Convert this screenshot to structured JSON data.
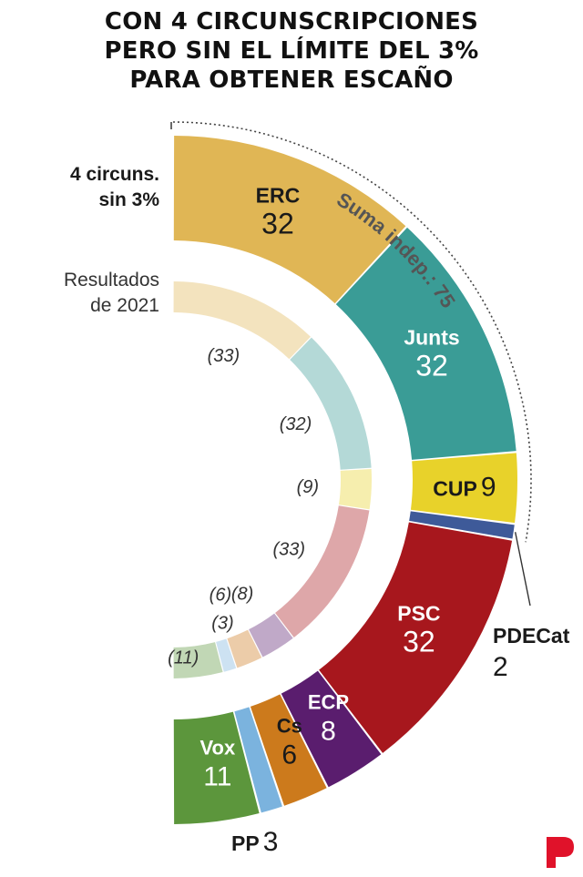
{
  "title_lines": [
    "CON 4 CIRCUNSCRIPCIONES",
    "PERO SIN EL LÍMITE DEL 3%",
    "PARA OBTENER ESCAÑO"
  ],
  "labels": {
    "outer_ring": [
      "4 circuns.",
      "sin 3%"
    ],
    "inner_ring": [
      "Resultados",
      "de 2021"
    ]
  },
  "bracket_label": "Suma indep.: 75",
  "colors": {
    "ERC": "#e0b655",
    "Junts": "#3a9c96",
    "CUP": "#e8d22a",
    "PDECat": "#3e5a99",
    "PSC": "#a7171d",
    "ECP": "#5a1d6e",
    "Cs": "#cc7a1c",
    "PP": "#7bb3de",
    "Vox": "#5c963c",
    "brand": "#e0122a"
  },
  "chart_data": {
    "type": "semi-donut",
    "total_seats": 135,
    "series": [
      {
        "name": "4 circuns. sin 3%",
        "ring": "outer",
        "categories": [
          "ERC",
          "Junts",
          "CUP",
          "PDECat",
          "PSC",
          "ECP",
          "Cs",
          "PP",
          "Vox"
        ],
        "values": [
          32,
          32,
          9,
          2,
          32,
          8,
          6,
          3,
          11
        ]
      },
      {
        "name": "Resultados de 2021",
        "ring": "inner",
        "categories": [
          "ERC",
          "Junts",
          "CUP",
          "PDECat",
          "PSC",
          "ECP",
          "Cs",
          "PP",
          "Vox"
        ],
        "values": [
          33,
          32,
          9,
          0,
          33,
          8,
          6,
          3,
          11
        ],
        "value_labels": [
          "(33)",
          "(32)",
          "(9)",
          "",
          "(33)",
          "(8)",
          "(6)",
          "(3)",
          "(11)"
        ]
      }
    ],
    "annotations": [
      {
        "text": "Suma indep.: 75",
        "spans": [
          "ERC",
          "Junts",
          "CUP",
          "PDECat"
        ],
        "value": 75
      }
    ]
  }
}
